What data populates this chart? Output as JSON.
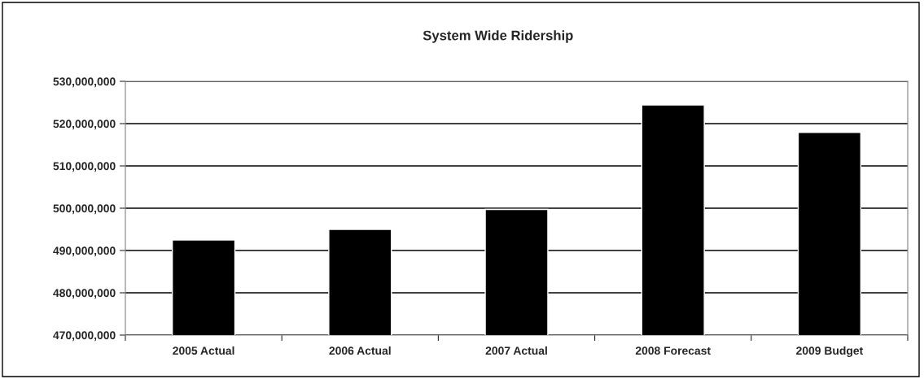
{
  "chart_data": {
    "type": "bar",
    "title": "System Wide Ridership",
    "categories": [
      "2005 Actual",
      "2006 Actual",
      "2007 Actual",
      "2008 Forecast",
      "2009 Budget"
    ],
    "values": [
      492500000,
      495000000,
      499700000,
      524400000,
      517900000
    ],
    "color": "#000000",
    "ylim": [
      470000000,
      530000000
    ],
    "yticks": [
      {
        "value": 470000000,
        "label": "470,000,000"
      },
      {
        "value": 480000000,
        "label": "480,000,000"
      },
      {
        "value": 490000000,
        "label": "490,000,000"
      },
      {
        "value": 500000000,
        "label": "500,000,000"
      },
      {
        "value": 510000000,
        "label": "510,000,000"
      },
      {
        "value": 520000000,
        "label": "520,000,000"
      },
      {
        "value": 530000000,
        "label": "530,000,000"
      }
    ],
    "grid": "y"
  }
}
